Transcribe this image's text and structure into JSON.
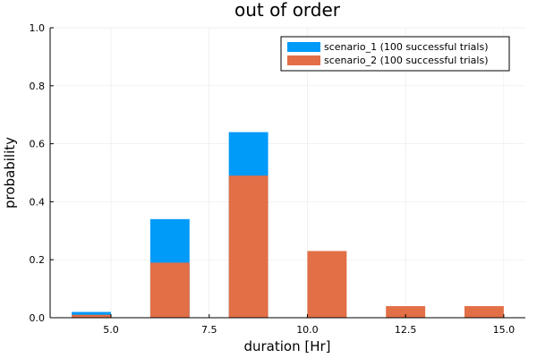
{
  "chart_data": {
    "type": "bar",
    "title": "out of order",
    "xlabel": "duration [Hr]",
    "ylabel": "probability",
    "xlim": [
      3.45,
      15.55
    ],
    "ylim": [
      0,
      1
    ],
    "x_ticks": [
      5.0,
      7.5,
      10.0,
      12.5,
      15.0
    ],
    "x_tick_labels": [
      "5.0",
      "7.5",
      "10.0",
      "12.5",
      "15.0"
    ],
    "y_ticks": [
      0,
      0.2,
      0.4,
      0.6,
      0.8,
      1.0
    ],
    "y_tick_labels": [
      "0.0",
      "0.2",
      "0.4",
      "0.6",
      "0.8",
      "1.0"
    ],
    "grid": true,
    "legend_position": "top-right",
    "series": [
      {
        "name": "scenario_1 (100 successful trials)",
        "color": "#009AF9",
        "bins": [
          [
            4,
            5
          ],
          [
            6,
            7
          ],
          [
            8,
            9
          ]
        ],
        "values": [
          0.02,
          0.34,
          0.64
        ]
      },
      {
        "name": "scenario_2 (100 successful trials)",
        "color": "#E26F46",
        "bins": [
          [
            4,
            5
          ],
          [
            6,
            7
          ],
          [
            8,
            9
          ],
          [
            10,
            11
          ],
          [
            12,
            13
          ],
          [
            14,
            15
          ]
        ],
        "values": [
          0.01,
          0.19,
          0.49,
          0.23,
          0.04,
          0.04
        ]
      }
    ]
  }
}
